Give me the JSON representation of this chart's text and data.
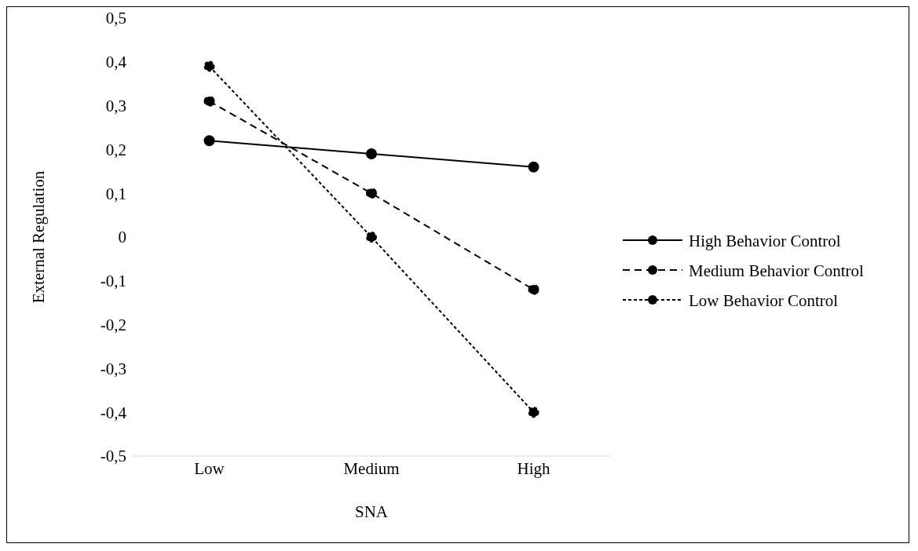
{
  "chart_data": {
    "type": "line",
    "xlabel": "SNA",
    "ylabel": "External Regulation",
    "categories": [
      "Low",
      "Medium",
      "High"
    ],
    "series": [
      {
        "name": "High Behavior Control",
        "color": "#000000",
        "values": [
          0.22,
          0.19,
          0.16
        ],
        "line_style": "solid"
      },
      {
        "name": "Medium Behavior Control",
        "color": "#000000",
        "values": [
          0.31,
          0.1,
          -0.12
        ],
        "line_style": "dashed"
      },
      {
        "name": "Low Behavior Control",
        "color": "#000000",
        "values": [
          0.39,
          0.0,
          -0.4
        ],
        "line_style": "dotted"
      }
    ],
    "ylim": [
      -0.5,
      0.5
    ],
    "yticks": [
      {
        "value": -0.5,
        "label": "-0,5"
      },
      {
        "value": -0.4,
        "label": "-0,4"
      },
      {
        "value": -0.3,
        "label": "-0,3"
      },
      {
        "value": -0.2,
        "label": "-0,2"
      },
      {
        "value": -0.1,
        "label": "-0,1"
      },
      0,
      {
        "value": 0.1,
        "label": "0,1"
      },
      {
        "value": 0.2,
        "label": "0,2"
      },
      {
        "value": 0.3,
        "label": "0,3"
      },
      {
        "value": 0.4,
        "label": "0,4"
      },
      {
        "value": 0.5,
        "label": "0,5"
      }
    ],
    "grid": false,
    "legend": "right",
    "marker": "circle"
  }
}
